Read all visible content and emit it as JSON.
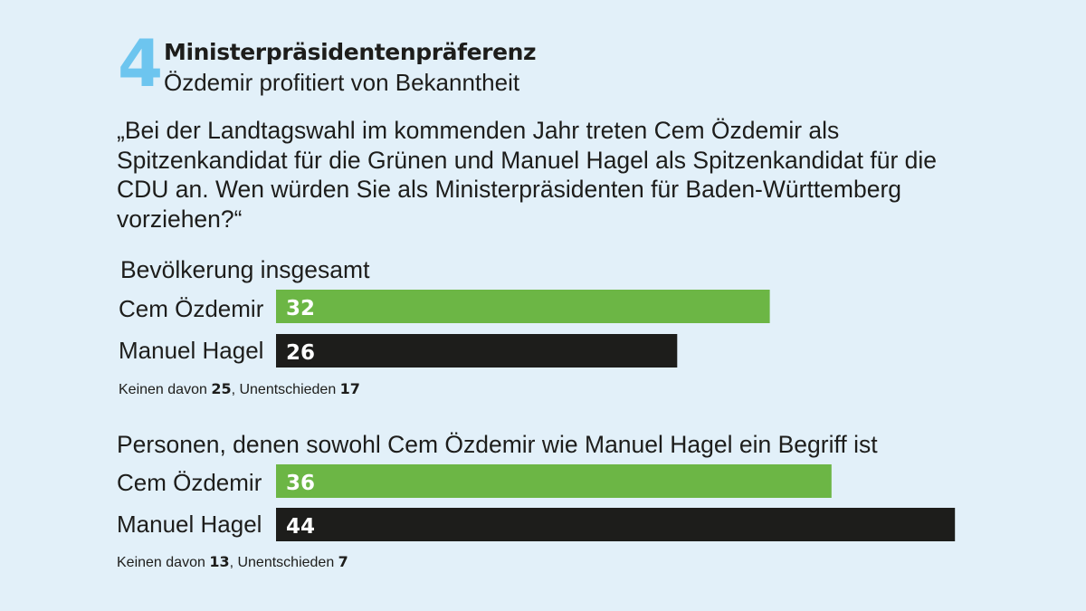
{
  "header": {
    "number": "4",
    "title": "Ministerpräsidentenpräferenz",
    "subtitle": "Özdemir profitiert von Bekanntheit"
  },
  "question": "„Bei der Landtagswahl im kommenden Jahr treten Cem Özdemir als Spitzenkandidat für die Grünen und Manuel Hagel als Spitzenkandidat für die CDU an. Wen würden Sie als Ministerpräsidenten für Baden-Württemberg vorziehen?“",
  "colors": {
    "gruene": "#6cb645",
    "cdu": "#1d1d1b",
    "number": "#6dc5ef",
    "background": "#e2f0f9"
  },
  "chart_data": [
    {
      "type": "bar",
      "orientation": "horizontal",
      "title": "Bevölkerung insgesamt",
      "categories": [
        "Cem Özdemir",
        "Manuel Hagel"
      ],
      "values": [
        32,
        26
      ],
      "unit": "%",
      "bar_colors": [
        "#6cb645",
        "#1d1d1b"
      ],
      "footnote": {
        "none_label": "Keinen davon",
        "none_value": "25",
        "sep": ", ",
        "undecided_label": "Unentschieden",
        "undecided_value": "17"
      }
    },
    {
      "type": "bar",
      "orientation": "horizontal",
      "title": "Personen, denen sowohl Cem Özdemir wie Manuel Hagel ein Begriff ist",
      "categories": [
        "Cem Özdemir",
        "Manuel Hagel"
      ],
      "values": [
        36,
        44
      ],
      "unit": "%",
      "bar_colors": [
        "#6cb645",
        "#1d1d1b"
      ],
      "footnote": {
        "none_label": "Keinen davon",
        "none_value": "13",
        "sep": ", ",
        "undecided_label": "Unentschieden",
        "undecided_value": "7"
      }
    }
  ]
}
